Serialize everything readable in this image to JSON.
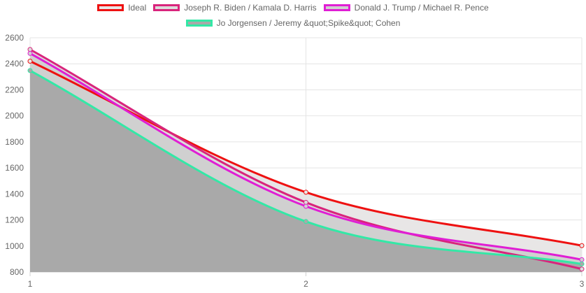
{
  "chart_data": {
    "type": "area",
    "title": "",
    "xlabel": "",
    "ylabel": "",
    "categories": [
      "1",
      "2",
      "3"
    ],
    "x": [
      1,
      2,
      3
    ],
    "ylim": [
      800,
      2600
    ],
    "yticks": [
      "2600",
      "2400",
      "2200",
      "2000",
      "1800",
      "1600",
      "1400",
      "1200",
      "1000",
      "800"
    ],
    "grid": true,
    "legend_position": "top",
    "series": [
      {
        "name": "Ideal",
        "values": [
          2420,
          1413,
          1003
        ],
        "color": "#ee1111",
        "fill": "#e8e6e6"
      },
      {
        "name": "Joseph R. Biden / Kamala D. Harris",
        "values": [
          2510,
          1335,
          823
        ],
        "color": "#d9247c",
        "fill": "#dcdcdc"
      },
      {
        "name": "Donald J. Trump / Michael R. Pence",
        "values": [
          2480,
          1305,
          895
        ],
        "color": "#e01ed4",
        "fill": "#d0d0d0"
      },
      {
        "name": "Jo Jorgensen / Jeremy &quot;Spike&quot; Cohen",
        "values": [
          2348,
          1188,
          862
        ],
        "color": "#33e8a6",
        "fill": "#a9a9a9"
      }
    ]
  }
}
